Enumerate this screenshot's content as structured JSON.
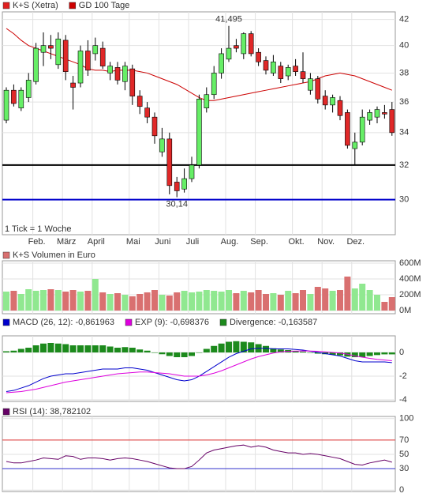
{
  "chart_data": [
    {
      "type": "candlestick",
      "log_scale": true,
      "grid": true,
      "ylim": [
        28.1,
        42.6
      ],
      "yticks": [
        30,
        32,
        34,
        36,
        38,
        40,
        42
      ],
      "note": "1 Tick = 1 Woche",
      "xticks": [
        {
          "value": 4,
          "label": "Feb."
        },
        {
          "value": 8,
          "label": "März"
        },
        {
          "value": 12,
          "label": "April"
        },
        {
          "value": 17,
          "label": "Mai"
        },
        {
          "value": 21,
          "label": "Juni"
        },
        {
          "value": 25,
          "label": "Juli"
        },
        {
          "value": 30,
          "label": "Aug."
        },
        {
          "value": 34,
          "label": "Sep."
        },
        {
          "value": 39,
          "label": "Okt."
        },
        {
          "value": 43,
          "label": "Nov."
        },
        {
          "value": 47,
          "label": "Dez."
        }
      ],
      "series": [
        {
          "name": "K+S (Xetra)",
          "color": "#e02020",
          "up_color": "#66ee66",
          "down_color": "#e02828",
          "open": [
            34.8,
            36.8,
            35.6,
            36.3,
            37.4,
            39.5,
            40.0,
            38.6,
            40.4,
            37.3,
            37.3,
            39.6,
            39.4,
            39.8,
            38.0,
            38.4,
            37.4,
            38.3,
            36.4,
            35.6,
            35.0,
            32.8,
            33.6,
            31.0,
            30.6,
            31.2,
            32.0,
            35.6,
            36.5,
            38.0,
            39.0,
            40.0,
            39.4,
            40.9,
            39.5,
            38.9,
            38.0,
            38.5,
            37.8,
            38.5,
            38.1,
            36.8,
            37.6,
            36.4,
            35.8,
            36.1,
            35.3,
            33.0,
            33.4,
            34.8,
            35.0,
            35.3,
            35.5
          ],
          "high": [
            37.0,
            37.2,
            37.0,
            38.0,
            40.2,
            41.0,
            40.8,
            41.0,
            40.8,
            37.8,
            40.0,
            40.4,
            40.6,
            40.3,
            38.8,
            38.8,
            38.8,
            38.6,
            36.8,
            36.0,
            35.3,
            34.3,
            34.0,
            31.3,
            31.8,
            32.5,
            36.5,
            37.0,
            38.5,
            39.8,
            41.495,
            40.5,
            41.0,
            41.1,
            39.8,
            39.2,
            39.3,
            38.8,
            38.6,
            39.0,
            39.5,
            38.0,
            37.8,
            36.8,
            36.5,
            36.4,
            35.5,
            34.0,
            35.5,
            35.5,
            35.7,
            35.8,
            36.0
          ],
          "low": [
            34.6,
            35.7,
            35.4,
            36.0,
            37.2,
            38.5,
            39.0,
            38.3,
            37.5,
            35.5,
            37.0,
            37.8,
            38.9,
            38.3,
            37.5,
            37.2,
            36.8,
            35.8,
            35.2,
            34.6,
            33.3,
            32.5,
            30.3,
            30.14,
            30.4,
            31.0,
            31.8,
            35.3,
            36.2,
            37.6,
            38.8,
            39.5,
            39.0,
            39.2,
            38.5,
            37.9,
            37.8,
            37.3,
            37.5,
            37.8,
            37.3,
            36.5,
            35.9,
            35.5,
            35.3,
            34.8,
            33.0,
            32.0,
            33.2,
            34.5,
            34.6,
            34.9,
            33.8
          ],
          "close": [
            36.8,
            35.9,
            36.8,
            37.5,
            39.8,
            40.0,
            39.8,
            40.5,
            38.1,
            37.0,
            39.6,
            38.2,
            40.0,
            38.5,
            38.5,
            37.5,
            38.5,
            36.4,
            35.7,
            35.0,
            33.8,
            33.6,
            30.8,
            30.5,
            31.2,
            32.0,
            36.2,
            36.5,
            38.0,
            39.4,
            39.8,
            39.8,
            40.9,
            39.4,
            38.8,
            38.2,
            38.8,
            37.6,
            38.4,
            38.1,
            37.6,
            37.6,
            36.2,
            35.8,
            36.3,
            35.1,
            33.2,
            33.4,
            35.0,
            35.3,
            35.5,
            35.2,
            34.0
          ]
        },
        {
          "name": "GD 100 Tage",
          "color": "#cc0000",
          "values": [
            41.3,
            40.9,
            40.4,
            40.0,
            39.8,
            39.6,
            39.4,
            39.2,
            39.0,
            38.8,
            38.6,
            38.3,
            38.2,
            38.2,
            38.1,
            38.2,
            38.2,
            38.2,
            38.1,
            38.0,
            37.8,
            37.6,
            37.4,
            37.2,
            36.9,
            36.6,
            36.3,
            36.1,
            36.1,
            36.2,
            36.3,
            36.4,
            36.5,
            36.6,
            36.7,
            36.8,
            36.9,
            37.0,
            37.1,
            37.2,
            37.3,
            37.4,
            37.6,
            37.8,
            37.9,
            38.0,
            37.9,
            37.8,
            37.6,
            37.4,
            37.2,
            37.0,
            36.8
          ]
        }
      ],
      "hlines": [
        {
          "value": 32,
          "color": "#000000"
        },
        {
          "value": 30,
          "color": "#0000cc"
        }
      ],
      "annotations": [
        {
          "index": 30,
          "value": 41.495,
          "label": "41,495"
        },
        {
          "index": 23,
          "value": 30.14,
          "label": "30,14"
        }
      ]
    },
    {
      "type": "bar",
      "grid": true,
      "ylim": [
        -40,
        630
      ],
      "yticks": [
        {
          "value": 0,
          "label": "0M"
        },
        {
          "value": 200,
          "label": "200M"
        },
        {
          "value": 400,
          "label": "400M"
        },
        {
          "value": 600,
          "label": "600M"
        }
      ],
      "series": [
        {
          "name": "K+S Volumen in Euro",
          "color": "#d97070",
          "up_color": "#90e890",
          "down_color": "#d97070",
          "values": [
            240,
            250,
            210,
            270,
            250,
            260,
            270,
            260,
            240,
            260,
            240,
            250,
            400,
            230,
            210,
            220,
            200,
            180,
            210,
            230,
            260,
            200,
            190,
            230,
            250,
            230,
            240,
            260,
            250,
            240,
            260,
            220,
            250,
            230,
            260,
            210,
            220,
            200,
            250,
            220,
            260,
            210,
            300,
            280,
            250,
            260,
            430,
            280,
            340,
            260,
            200,
            110,
            170
          ]
        }
      ]
    },
    {
      "type": "macd",
      "grid": true,
      "ylim": [
        -4.13,
        1.4
      ],
      "yticks": [
        -4,
        -2,
        0
      ],
      "series": [
        {
          "name": "MACD (26, 12): -0,861963",
          "color": "#0000cc",
          "values": [
            -3.3,
            -3.2,
            -3.0,
            -2.8,
            -2.5,
            -2.2,
            -2.0,
            -1.9,
            -1.8,
            -1.8,
            -1.7,
            -1.6,
            -1.5,
            -1.4,
            -1.4,
            -1.4,
            -1.3,
            -1.3,
            -1.4,
            -1.5,
            -1.7,
            -1.9,
            -2.1,
            -2.3,
            -2.4,
            -2.3,
            -2.0,
            -1.6,
            -1.2,
            -0.8,
            -0.4,
            -0.1,
            0.1,
            0.3,
            0.35,
            0.35,
            0.3,
            0.3,
            0.3,
            0.25,
            0.2,
            0.1,
            0.0,
            -0.1,
            -0.2,
            -0.3,
            -0.5,
            -0.7,
            -0.8,
            -0.8,
            -0.8,
            -0.8,
            -0.86
          ]
        },
        {
          "name": "EXP (9): -0,698376",
          "color": "#dd00dd",
          "values": [
            -3.4,
            -3.35,
            -3.3,
            -3.2,
            -3.1,
            -2.95,
            -2.8,
            -2.65,
            -2.5,
            -2.4,
            -2.3,
            -2.2,
            -2.1,
            -2.0,
            -1.9,
            -1.8,
            -1.75,
            -1.7,
            -1.65,
            -1.65,
            -1.7,
            -1.75,
            -1.8,
            -1.9,
            -2.0,
            -2.0,
            -2.0,
            -1.9,
            -1.75,
            -1.55,
            -1.3,
            -1.05,
            -0.8,
            -0.55,
            -0.35,
            -0.2,
            -0.05,
            0.05,
            0.1,
            0.12,
            0.13,
            0.12,
            0.1,
            0.05,
            0.0,
            -0.05,
            -0.15,
            -0.3,
            -0.4,
            -0.5,
            -0.58,
            -0.64,
            -0.7
          ]
        },
        {
          "name": "Divergence: -0,163587",
          "color": "#1c8a1c",
          "bars": true,
          "values": [
            0.1,
            0.15,
            0.3,
            0.4,
            0.6,
            0.75,
            0.8,
            0.75,
            0.7,
            0.6,
            0.6,
            0.6,
            0.6,
            0.6,
            0.5,
            0.4,
            0.45,
            0.4,
            0.25,
            0.15,
            0.0,
            -0.15,
            -0.3,
            -0.4,
            -0.4,
            -0.3,
            0.0,
            0.3,
            0.55,
            0.75,
            0.9,
            0.95,
            0.9,
            0.85,
            0.7,
            0.55,
            0.35,
            0.25,
            0.2,
            0.13,
            0.07,
            -0.02,
            -0.1,
            -0.15,
            -0.2,
            -0.25,
            -0.35,
            -0.4,
            -0.4,
            -0.3,
            -0.22,
            -0.16,
            -0.16
          ]
        }
      ]
    },
    {
      "type": "line",
      "grid": true,
      "ylim": [
        -2,
        103
      ],
      "yticks": [
        0,
        30,
        50,
        70,
        100
      ],
      "hlines": [
        {
          "value": 70,
          "color": "#dd3333"
        },
        {
          "value": 30,
          "color": "#3333cc"
        }
      ],
      "series": [
        {
          "name": "RSI (14): 38,782102",
          "color": "#660066",
          "values": [
            40,
            38,
            38,
            40,
            42,
            45,
            44,
            43,
            48,
            47,
            43,
            45,
            45,
            44,
            42,
            44,
            45,
            44,
            42,
            40,
            37,
            34,
            31,
            30,
            30,
            33,
            42,
            52,
            56,
            58,
            60,
            62,
            63,
            60,
            62,
            60,
            56,
            54,
            52,
            52,
            50,
            51,
            50,
            48,
            46,
            44,
            40,
            36,
            35,
            38,
            40,
            42,
            39
          ]
        }
      ]
    }
  ]
}
